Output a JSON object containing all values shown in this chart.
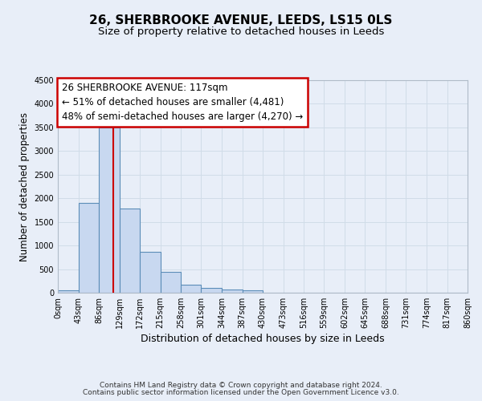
{
  "title": "26, SHERBROOKE AVENUE, LEEDS, LS15 0LS",
  "subtitle": "Size of property relative to detached houses in Leeds",
  "xlabel": "Distribution of detached houses by size in Leeds",
  "ylabel": "Number of detached properties",
  "bar_edges": [
    0,
    43,
    86,
    129,
    172,
    215,
    258,
    301,
    344,
    387,
    430,
    473,
    516,
    559,
    602,
    645,
    688,
    731,
    774,
    817,
    860
  ],
  "bar_heights": [
    50,
    1900,
    3500,
    1780,
    860,
    450,
    175,
    100,
    60,
    50,
    0,
    0,
    0,
    0,
    0,
    0,
    0,
    0,
    0,
    0
  ],
  "bar_color": "#c8d8f0",
  "bar_edgecolor": "#5b8db8",
  "bar_linewidth": 0.8,
  "vline_x": 117,
  "vline_color": "#cc0000",
  "vline_linewidth": 1.5,
  "ylim": [
    0,
    4500
  ],
  "yticks": [
    0,
    500,
    1000,
    1500,
    2000,
    2500,
    3000,
    3500,
    4000,
    4500
  ],
  "xtick_labels": [
    "0sqm",
    "43sqm",
    "86sqm",
    "129sqm",
    "172sqm",
    "215sqm",
    "258sqm",
    "301sqm",
    "344sqm",
    "387sqm",
    "430sqm",
    "473sqm",
    "516sqm",
    "559sqm",
    "602sqm",
    "645sqm",
    "688sqm",
    "731sqm",
    "774sqm",
    "817sqm",
    "860sqm"
  ],
  "ann_line1": "26 SHERBROOKE AVENUE: 117sqm",
  "ann_line2": "← 51% of detached houses are smaller (4,481)",
  "ann_line3": "48% of semi-detached houses are larger (4,270) →",
  "box_edgecolor": "#cc0000",
  "box_facecolor": "white",
  "grid_color": "#d0dce8",
  "background_color": "#e8eef8",
  "axes_background": "#e8eef8",
  "footer_line1": "Contains HM Land Registry data © Crown copyright and database right 2024.",
  "footer_line2": "Contains public sector information licensed under the Open Government Licence v3.0.",
  "title_fontsize": 11,
  "subtitle_fontsize": 9.5,
  "xlabel_fontsize": 9,
  "ylabel_fontsize": 8.5,
  "tick_fontsize": 7,
  "ann_fontsize": 8.5,
  "footer_fontsize": 6.5
}
